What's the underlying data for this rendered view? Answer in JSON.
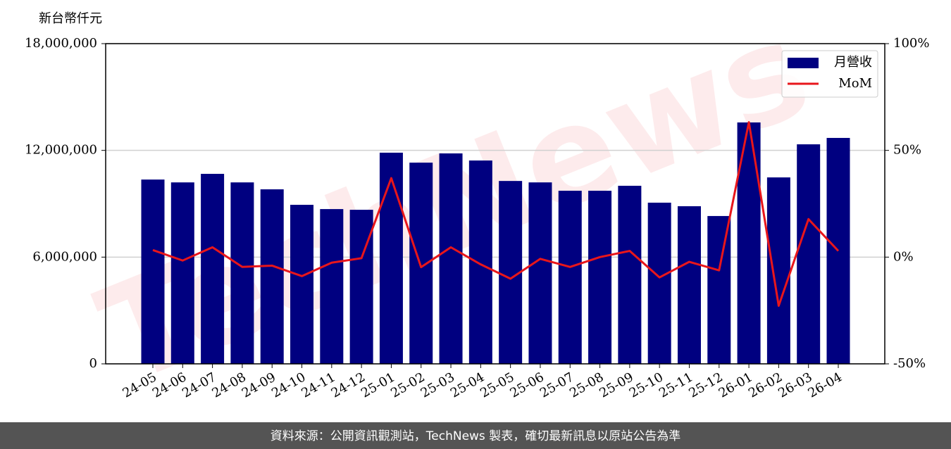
{
  "chart_data": {
    "type": "bar",
    "ylabel": "新台幣仟元",
    "watermark": "TechNews",
    "footer": "資料來源：公開資訊觀測站，TechNews 製表，確切最新訊息以原站公告為準",
    "categories": [
      "24-05",
      "24-06",
      "24-07",
      "24-08",
      "24-09",
      "24-10",
      "24-11",
      "24-12",
      "25-01",
      "25-02",
      "25-03",
      "25-04",
      "25-05",
      "25-06",
      "25-07",
      "25-08",
      "25-09",
      "25-10",
      "25-11",
      "25-12",
      "26-01",
      "26-02",
      "26-03",
      "26-04"
    ],
    "series": [
      {
        "name": "月營收",
        "type": "bar",
        "color": "#000080",
        "values": [
          10360000,
          10200000,
          10680000,
          10200000,
          9810000,
          8940000,
          8700000,
          8660000,
          11870000,
          11310000,
          11830000,
          11430000,
          10280000,
          10200000,
          9730000,
          9730000,
          10010000,
          9060000,
          8860000,
          8310000,
          13570000,
          10480000,
          12340000,
          12700000
        ]
      },
      {
        "name": "MoM",
        "type": "line",
        "axis": "y2",
        "color": "#e8161b",
        "values": [
          3.3,
          -1.6,
          4.6,
          -4.6,
          -4.0,
          -8.9,
          -2.6,
          -0.5,
          37.0,
          -4.7,
          4.6,
          -3.4,
          -10.1,
          -0.8,
          -4.6,
          0.0,
          2.9,
          -9.5,
          -2.2,
          -6.2,
          63.2,
          -22.8,
          17.8,
          2.9
        ]
      }
    ],
    "ylim": [
      0,
      18000000
    ],
    "yticks": [
      0,
      {
        "value": 6000000,
        "label": "6,000,000"
      },
      {
        "value": 12000000,
        "label": "12,000,000"
      },
      {
        "value": 18000000,
        "label": "18,000,000"
      }
    ],
    "y2lim": [
      -50,
      100
    ],
    "y2ticks": [
      {
        "value": -50,
        "label": "-50%"
      },
      {
        "value": 0,
        "label": "0%"
      },
      {
        "value": 50,
        "label": "50%"
      },
      {
        "value": 100,
        "label": "100%"
      }
    ],
    "grid": true,
    "legend": "upper right"
  }
}
